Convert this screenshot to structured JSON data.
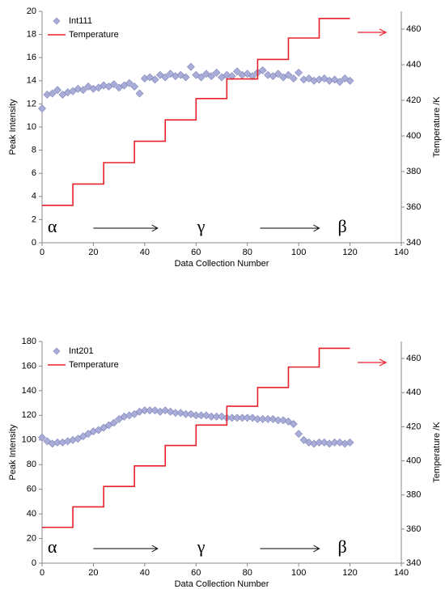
{
  "chart_data": [
    {
      "type": "combo",
      "xlabel": "Data Collection Number",
      "ylabel": "Peak Intensity",
      "y2label": "Temperature /K",
      "xlim": [
        0,
        140
      ],
      "xticks": [
        0,
        20,
        40,
        60,
        80,
        100,
        120,
        140
      ],
      "ylim": [
        0,
        20
      ],
      "yticks": [
        0,
        2,
        4,
        6,
        8,
        10,
        12,
        14,
        16,
        18,
        20
      ],
      "y2lim": [
        340,
        470
      ],
      "y2ticks": [
        340,
        360,
        380,
        400,
        420,
        440,
        460
      ],
      "annotations": [
        "α",
        "γ",
        "β"
      ],
      "legend": "upper left",
      "series": [
        {
          "name": "Int111",
          "kind": "scatter",
          "color": "#a9aed8",
          "x": [
            0,
            2,
            4,
            6,
            8,
            10,
            12,
            14,
            16,
            18,
            20,
            22,
            24,
            26,
            28,
            30,
            32,
            34,
            36,
            38,
            40,
            42,
            44,
            46,
            48,
            50,
            52,
            54,
            56,
            58,
            60,
            62,
            64,
            66,
            68,
            70,
            72,
            74,
            76,
            78,
            80,
            82,
            84,
            86,
            88,
            90,
            92,
            94,
            96,
            98,
            100,
            102,
            104,
            106,
            108,
            110,
            112,
            114,
            116,
            118,
            120
          ],
          "values": [
            11.6,
            12.8,
            12.9,
            13.2,
            12.8,
            13.0,
            13.1,
            13.3,
            13.2,
            13.5,
            13.3,
            13.4,
            13.6,
            13.5,
            13.7,
            13.4,
            13.6,
            13.8,
            13.5,
            12.9,
            14.2,
            14.3,
            14.1,
            14.5,
            14.3,
            14.6,
            14.4,
            14.5,
            14.3,
            15.2,
            14.5,
            14.3,
            14.6,
            14.4,
            14.7,
            14.3,
            14.5,
            14.4,
            14.8,
            14.5,
            14.6,
            14.4,
            14.7,
            14.9,
            14.5,
            14.4,
            14.6,
            14.3,
            14.5,
            14.2,
            14.7,
            14.1,
            14.2,
            14.0,
            14.1,
            14.2,
            14.0,
            14.1,
            13.9,
            14.2,
            14.0
          ]
        },
        {
          "name": "Temperature",
          "kind": "line",
          "axis": "y2",
          "color": "#e8202a",
          "x": [
            0,
            12,
            12,
            24,
            24,
            36,
            36,
            48,
            48,
            60,
            60,
            72,
            72,
            84,
            84,
            96,
            96,
            108,
            108,
            120
          ],
          "values": [
            361,
            361,
            373,
            373,
            385,
            385,
            397,
            397,
            409,
            409,
            421,
            421,
            432,
            432,
            443,
            443,
            455,
            455,
            466,
            466
          ]
        }
      ]
    },
    {
      "type": "combo",
      "xlabel": "Data Collection Number",
      "ylabel": "Peak Intensity",
      "y2label": "Temperature /K",
      "xlim": [
        0,
        140
      ],
      "xticks": [
        0,
        20,
        40,
        60,
        80,
        100,
        120,
        140
      ],
      "ylim": [
        0,
        180
      ],
      "yticks": [
        0,
        20,
        40,
        60,
        80,
        100,
        120,
        140,
        160,
        180
      ],
      "y2lim": [
        340,
        470
      ],
      "y2ticks": [
        340,
        360,
        380,
        400,
        420,
        440,
        460
      ],
      "annotations": [
        "α",
        "γ",
        "β"
      ],
      "legend": "upper left",
      "series": [
        {
          "name": "Int201",
          "kind": "scatter",
          "color": "#a9aed8",
          "x": [
            0,
            2,
            4,
            6,
            8,
            10,
            12,
            14,
            16,
            18,
            20,
            22,
            24,
            26,
            28,
            30,
            32,
            34,
            36,
            38,
            40,
            42,
            44,
            46,
            48,
            50,
            52,
            54,
            56,
            58,
            60,
            62,
            64,
            66,
            68,
            70,
            72,
            74,
            76,
            78,
            80,
            82,
            84,
            86,
            88,
            90,
            92,
            94,
            96,
            98,
            100,
            102,
            104,
            106,
            108,
            110,
            112,
            114,
            116,
            118,
            120
          ],
          "values": [
            102,
            99,
            97,
            98,
            98,
            99,
            100,
            101,
            103,
            105,
            107,
            108,
            110,
            112,
            114,
            117,
            119,
            120,
            121,
            123,
            124,
            124,
            124,
            123,
            124,
            123,
            122,
            122,
            121,
            121,
            120,
            120,
            120,
            119,
            119,
            119,
            118,
            118,
            118,
            118,
            118,
            118,
            117,
            117,
            117,
            117,
            116,
            116,
            115,
            113,
            105,
            100,
            98,
            97,
            98,
            98,
            97,
            98,
            98,
            97,
            98
          ]
        },
        {
          "name": "Temperature",
          "kind": "line",
          "axis": "y2",
          "color": "#e8202a",
          "x": [
            0,
            12,
            12,
            24,
            24,
            36,
            36,
            48,
            48,
            60,
            60,
            72,
            72,
            84,
            84,
            96,
            96,
            108,
            108,
            120
          ],
          "values": [
            361,
            361,
            373,
            373,
            385,
            385,
            397,
            397,
            409,
            409,
            421,
            421,
            432,
            432,
            443,
            443,
            455,
            455,
            466,
            466
          ]
        }
      ]
    }
  ]
}
